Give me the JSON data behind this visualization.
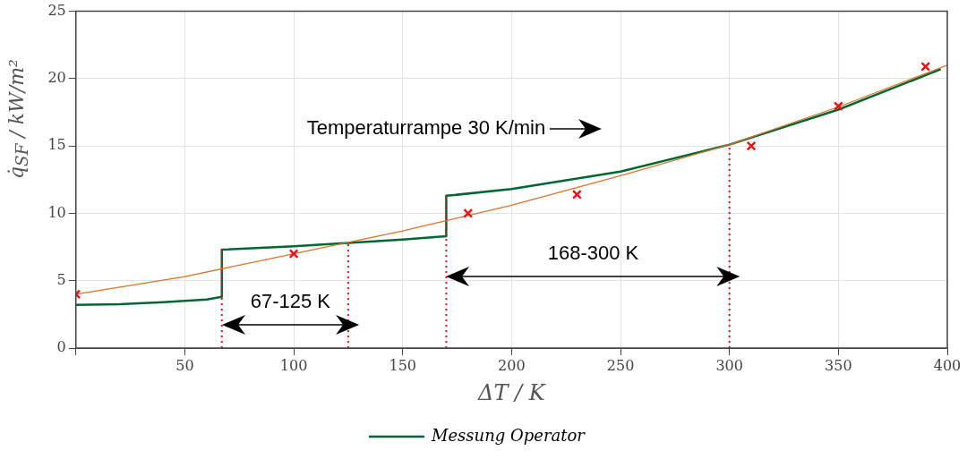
{
  "chart_data": {
    "type": "line",
    "xlabel": "ΔT / K",
    "ylabel": "q̇$_{SF}$ / kW/m²",
    "xlim": [
      0,
      400
    ],
    "xticks": [
      {
        "value": 0,
        "label": null
      },
      50,
      100,
      150,
      200,
      250,
      300,
      350,
      400
    ],
    "ylim": [
      0,
      25
    ],
    "yticks": [
      0,
      5,
      10,
      15,
      20,
      25
    ],
    "grid": true,
    "legend": "bottom",
    "series": [
      {
        "name": "Messung Operator",
        "color": "#006633",
        "marker": "none",
        "x": [
          0,
          20,
          40,
          60,
          67,
          67,
          100,
          125,
          150,
          170,
          170,
          200,
          250,
          300,
          350,
          397
        ],
        "values": [
          3.2,
          3.25,
          3.4,
          3.6,
          3.8,
          7.3,
          7.55,
          7.8,
          8.05,
          8.3,
          11.3,
          11.8,
          13.1,
          15.1,
          17.7,
          20.7
        ]
      },
      {
        "color": "#d9722a",
        "marker": "none",
        "x": [
          0,
          50,
          100,
          150,
          200,
          250,
          300,
          350,
          400
        ],
        "values": [
          4.0,
          5.3,
          7.0,
          8.7,
          10.6,
          12.8,
          15.1,
          17.9,
          21.0
        ]
      },
      {
        "type": "scatter",
        "color": "#e8141c",
        "marker": "cross",
        "x": [
          0,
          100,
          180,
          230,
          310,
          350,
          390
        ],
        "values": [
          4.0,
          7.0,
          10.0,
          11.4,
          15.0,
          17.95,
          20.9
        ]
      }
    ],
    "ref_lines": [
      {
        "axis": "x",
        "value": 67,
        "color": "#e8141c",
        "line_style": "dotted"
      },
      {
        "axis": "x",
        "value": 125,
        "color": "#e8141c",
        "line_style": "dotted"
      },
      {
        "axis": "x",
        "value": 170,
        "color": "#e8141c",
        "line_style": "dotted"
      },
      {
        "axis": "x",
        "value": 300,
        "color": "#e8141c",
        "line_style": "dotted"
      }
    ],
    "annotations": [
      "67-125 K",
      "168-300 K",
      "Temperaturrampe 30 K/min"
    ]
  }
}
